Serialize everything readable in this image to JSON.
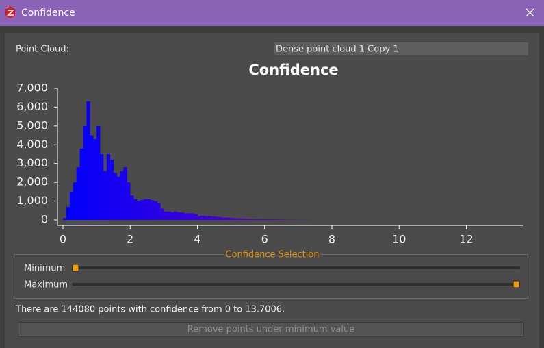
{
  "window": {
    "title": "Confidence"
  },
  "point_cloud": {
    "label": "Point Cloud:",
    "value": "Dense point cloud 1 Copy 1"
  },
  "chart_data": {
    "type": "histogram",
    "title": "Confidence",
    "bins": [
      0,
      0.1,
      0.2,
      0.3,
      0.4,
      0.5,
      0.6,
      0.7,
      0.8,
      0.9,
      1.0,
      1.1,
      1.2,
      1.3,
      1.4,
      1.5,
      1.6,
      1.7,
      1.8,
      1.9,
      2.0,
      2.1,
      2.2,
      2.3,
      2.4,
      2.5,
      2.6,
      2.7,
      2.8,
      2.9,
      3.0,
      3.1,
      3.2,
      3.3,
      3.4,
      3.5,
      3.6,
      3.7,
      3.8,
      3.9,
      4.0,
      4.1,
      4.2,
      4.3,
      4.4,
      4.5,
      4.6,
      4.7,
      4.8,
      4.9,
      5.0,
      5.1,
      5.2,
      5.3,
      5.4,
      5.5,
      5.6,
      5.7,
      5.8,
      5.9,
      6.0,
      6.1,
      6.2,
      6.3,
      6.4,
      6.5,
      6.6,
      6.7,
      6.8,
      6.9,
      7.0,
      7.1,
      7.2,
      7.3,
      7.4,
      7.5,
      7.6,
      7.7,
      7.8,
      7.9,
      8.0,
      8.1,
      8.2,
      8.3
    ],
    "counts": [
      100,
      700,
      1500,
      2000,
      2800,
      3800,
      5000,
      6300,
      4500,
      4300,
      5000,
      3500,
      2600,
      3500,
      3200,
      2500,
      2300,
      2600,
      2800,
      2000,
      1300,
      1100,
      1000,
      1050,
      1100,
      1100,
      1050,
      1000,
      900,
      600,
      450,
      450,
      400,
      450,
      400,
      400,
      350,
      350,
      350,
      300,
      200,
      220,
      200,
      200,
      180,
      170,
      150,
      130,
      120,
      120,
      100,
      90,
      80,
      80,
      70,
      60,
      60,
      50,
      50,
      40,
      40,
      35,
      30,
      30,
      25,
      20,
      20,
      15,
      15,
      10,
      10,
      10,
      8,
      6,
      5,
      5,
      4,
      3,
      3,
      2,
      2,
      2,
      1
    ],
    "color_start": "#0000ff",
    "color_end": "#7a00b0",
    "xlim": [
      0,
      13.7006
    ],
    "xticks": [
      0,
      2,
      4,
      6,
      8,
      10,
      12
    ],
    "ylim": [
      0,
      7000
    ],
    "yticks": [
      0,
      {
        "value": 1000,
        "label": "1,000"
      },
      {
        "value": 2000,
        "label": "2,000"
      },
      {
        "value": 3000,
        "label": "3,000"
      },
      {
        "value": 4000,
        "label": "4,000"
      },
      {
        "value": 5000,
        "label": "5,000"
      },
      {
        "value": 6000,
        "label": "6,000"
      },
      {
        "value": 7000,
        "label": "7,000"
      }
    ]
  },
  "selection": {
    "title": "Confidence Selection",
    "minimum_label": "Minimum",
    "maximum_label": "Maximum"
  },
  "status": "There are 144080 points with confidence from 0 to 13.7006.",
  "button": "Remove points under minimum value"
}
